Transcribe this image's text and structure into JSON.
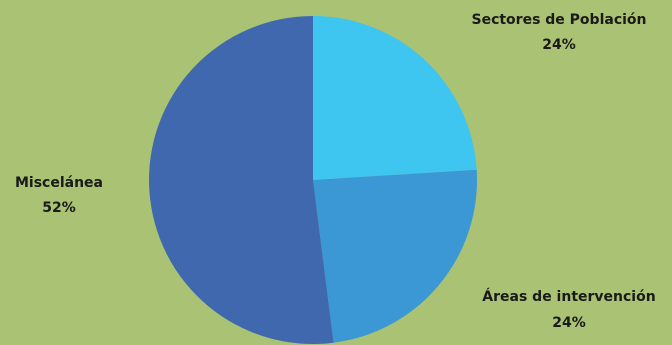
{
  "chart_data": {
    "type": "pie",
    "background": "#a9c273",
    "slices": [
      {
        "label": "Sectores de Población",
        "value": 24,
        "value_label": "24%",
        "color": "#3ec5f0"
      },
      {
        "label": "Áreas de intervención",
        "value": 24,
        "value_label": "24%",
        "color": "#3b98d4"
      },
      {
        "label": "Miscelánea",
        "value": 52,
        "value_label": "52%",
        "color": "#4068ae"
      }
    ]
  }
}
